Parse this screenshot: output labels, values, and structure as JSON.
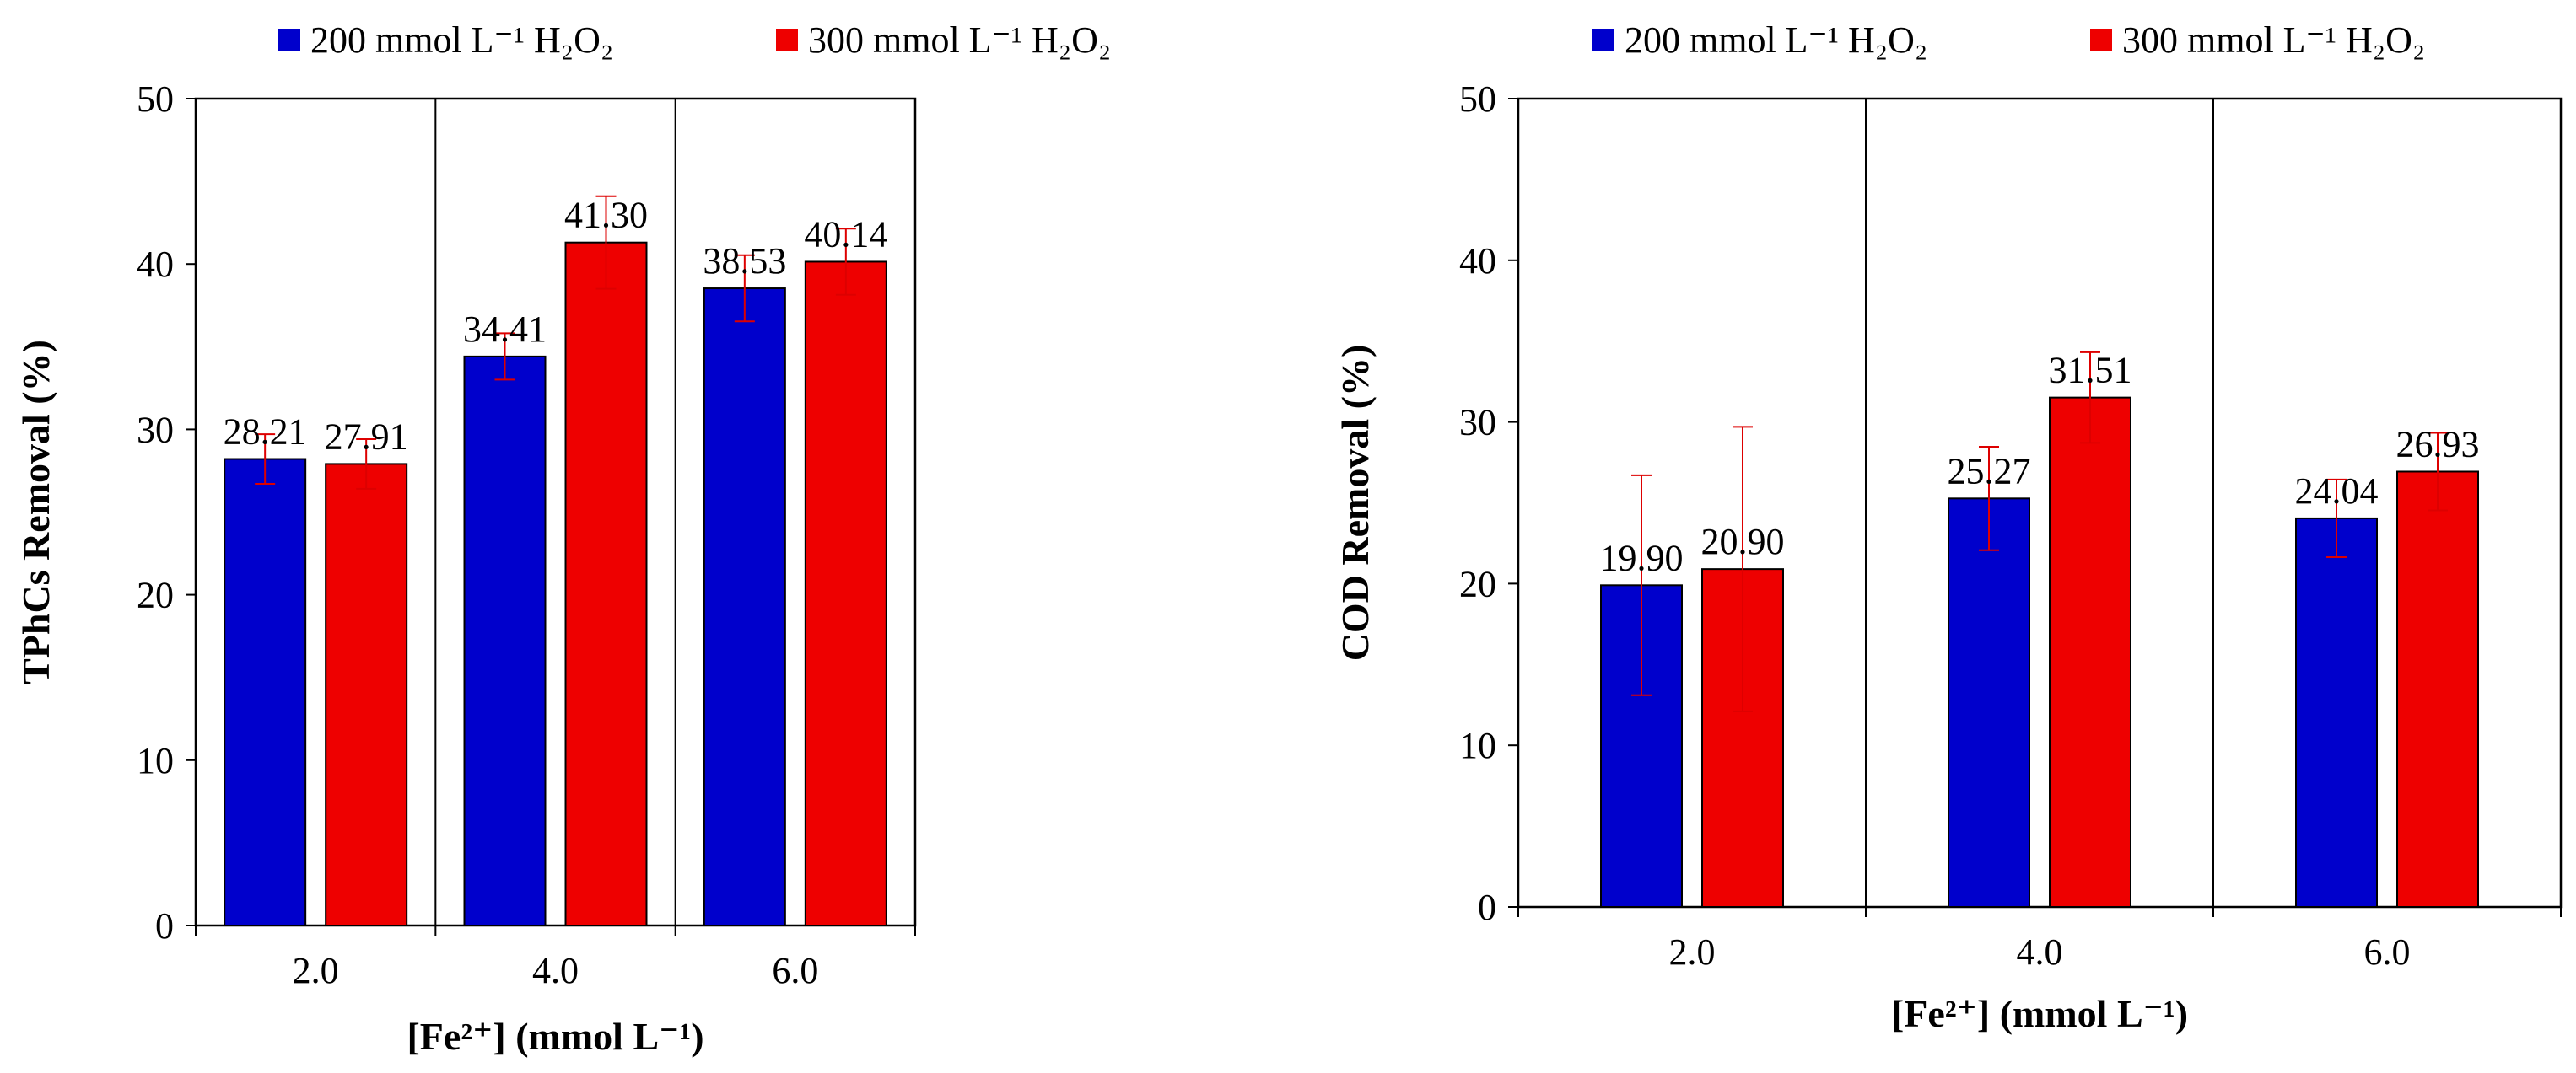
{
  "chart_data": [
    {
      "type": "bar",
      "title": "",
      "xlabel": "[Fe²⁺] (mmol L⁻¹)",
      "ylabel": "TPhCs Removal (%)",
      "ylim": [
        0,
        50
      ],
      "yticks": [
        "0",
        "10",
        "20",
        "30",
        "40",
        "50"
      ],
      "categories": [
        "2.0",
        "4.0",
        "6.0"
      ],
      "legend_position": "top",
      "series": [
        {
          "name": "200 mmol L⁻¹ H₂O₂",
          "color": "#0000cc",
          "values": [
            28.21,
            34.41,
            38.53
          ],
          "labels": [
            "28.21",
            "34.41",
            "38.53"
          ],
          "errors": [
            1.5,
            1.4,
            2.0
          ]
        },
        {
          "name": "300 mmol L⁻¹ H₂O₂",
          "color": "#ee0000",
          "values": [
            27.91,
            41.3,
            40.14
          ],
          "labels": [
            "27.91",
            "41.30",
            "40.14"
          ],
          "errors": [
            1.5,
            2.8,
            2.0
          ]
        }
      ]
    },
    {
      "type": "bar",
      "title": "",
      "xlabel": "[Fe²⁺] (mmol L⁻¹)",
      "ylabel": "COD Removal (%)",
      "ylim": [
        0,
        50
      ],
      "yticks": [
        "0",
        "10",
        "20",
        "30",
        "40",
        "50"
      ],
      "categories": [
        "2.0",
        "4.0",
        "6.0"
      ],
      "legend_position": "top",
      "series": [
        {
          "name": "200 mmol L⁻¹ H₂O₂",
          "color": "#0000cc",
          "values": [
            19.9,
            25.27,
            24.04
          ],
          "labels": [
            "19.90",
            "25.27",
            "24.04"
          ],
          "errors": [
            6.8,
            3.2,
            2.4
          ]
        },
        {
          "name": "300 mmol L⁻¹ H₂O₂",
          "color": "#ee0000",
          "values": [
            20.9,
            31.51,
            26.93
          ],
          "labels": [
            "20.90",
            "31.51",
            "26.93"
          ],
          "errors": [
            8.8,
            2.8,
            2.4
          ]
        }
      ]
    }
  ]
}
